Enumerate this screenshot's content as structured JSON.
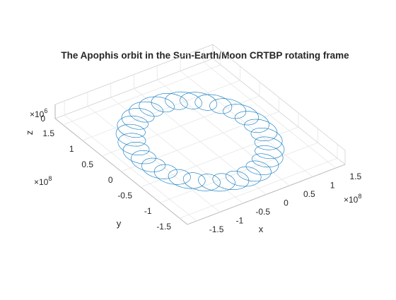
{
  "chart_data": {
    "type": "line",
    "title": "The Apophis orbit in the Sun-Earth/Moon CRTBP rotating frame",
    "xlabel": "x",
    "ylabel": "y",
    "zlabel": "z",
    "x_exponent_base": "×10",
    "x_exponent": "8",
    "y_exponent_base": "×10",
    "y_exponent": "8",
    "z_exponent_base": "×10",
    "z_exponent": "6",
    "xlim": [
      -1.7,
      1.7
    ],
    "ylim": [
      -1.7,
      1.7
    ],
    "zlim": [
      0,
      4
    ],
    "x_ticks": [
      -1.5,
      -1,
      -0.5,
      0,
      0.5,
      1,
      1.5
    ],
    "x_tick_labels": [
      "-1.5",
      "-1",
      "-0.5",
      "0",
      "0.5",
      "1",
      "1.5"
    ],
    "y_ticks": [
      -1.5,
      -1,
      -0.5,
      0,
      0.5,
      1,
      1.5
    ],
    "y_tick_labels": [
      "-1.5",
      "-1",
      "-0.5",
      "0",
      "0.5",
      "1",
      "1.5"
    ],
    "z_ticks": [
      0
    ],
    "z_tick_labels": [
      "0"
    ],
    "grid": true,
    "series": [
      {
        "line_color": "#0072BD",
        "curve": "epicycloid",
        "center_radius": 1.15,
        "loop_radius": 0.24,
        "loops": 28,
        "z_value": 0
      }
    ]
  }
}
